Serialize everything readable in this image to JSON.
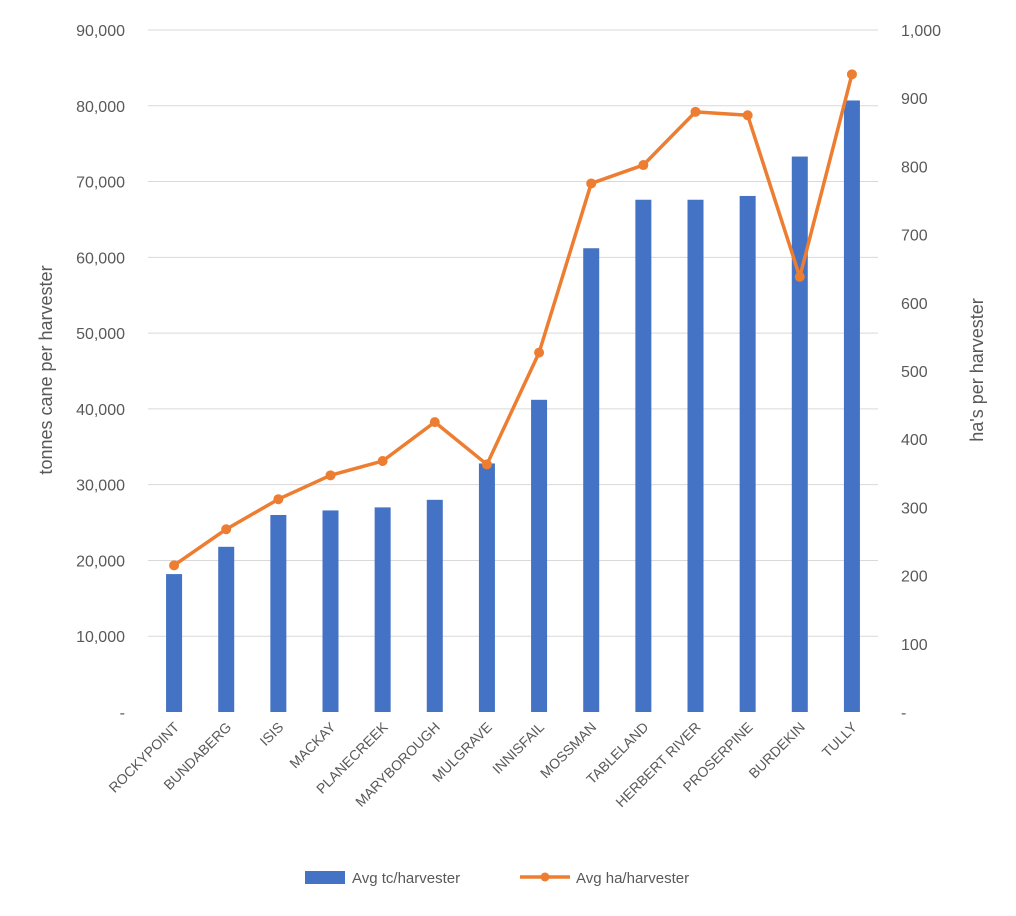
{
  "chart_data": {
    "type": "bar",
    "categories": [
      "ROCKYPOINT",
      "BUNDABERG",
      "ISIS",
      "MACKAY",
      "PLANECREEK",
      "MARYBOROUGH",
      "MULGRAVE",
      "INNISFAIL",
      "MOSSMAN",
      "TABLELAND",
      "HERBERT RIVER",
      "PROSERPINE",
      "BURDEKIN",
      "TULLY"
    ],
    "series": [
      {
        "name": "Avg tc/harvester",
        "type": "bar",
        "axis": "left",
        "color": "#4472C4",
        "values": [
          18200,
          21800,
          26000,
          26600,
          27000,
          28000,
          32800,
          41200,
          61200,
          67600,
          67600,
          68100,
          73300,
          80700
        ]
      },
      {
        "name": "Avg ha/harvester",
        "type": "line",
        "axis": "right",
        "color": "#ED7D31",
        "values": [
          215,
          268,
          312,
          347,
          368,
          425,
          363,
          527,
          775,
          802,
          880,
          875,
          638,
          935
        ]
      }
    ],
    "y_left": {
      "label": "tonnes cane per harvester",
      "range": [
        0,
        90000
      ],
      "ticks": [
        "-",
        "10,000",
        "20,000",
        "30,000",
        "40,000",
        "50,000",
        "60,000",
        "70,000",
        "80,000",
        "90,000"
      ]
    },
    "y_right": {
      "label": "ha's per harvester",
      "range": [
        0,
        1000
      ],
      "ticks": [
        "-",
        "100",
        "200",
        "300",
        "400",
        "500",
        "600",
        "700",
        "800",
        "900",
        "1,000"
      ]
    },
    "grid": true,
    "legend_position": "bottom"
  }
}
